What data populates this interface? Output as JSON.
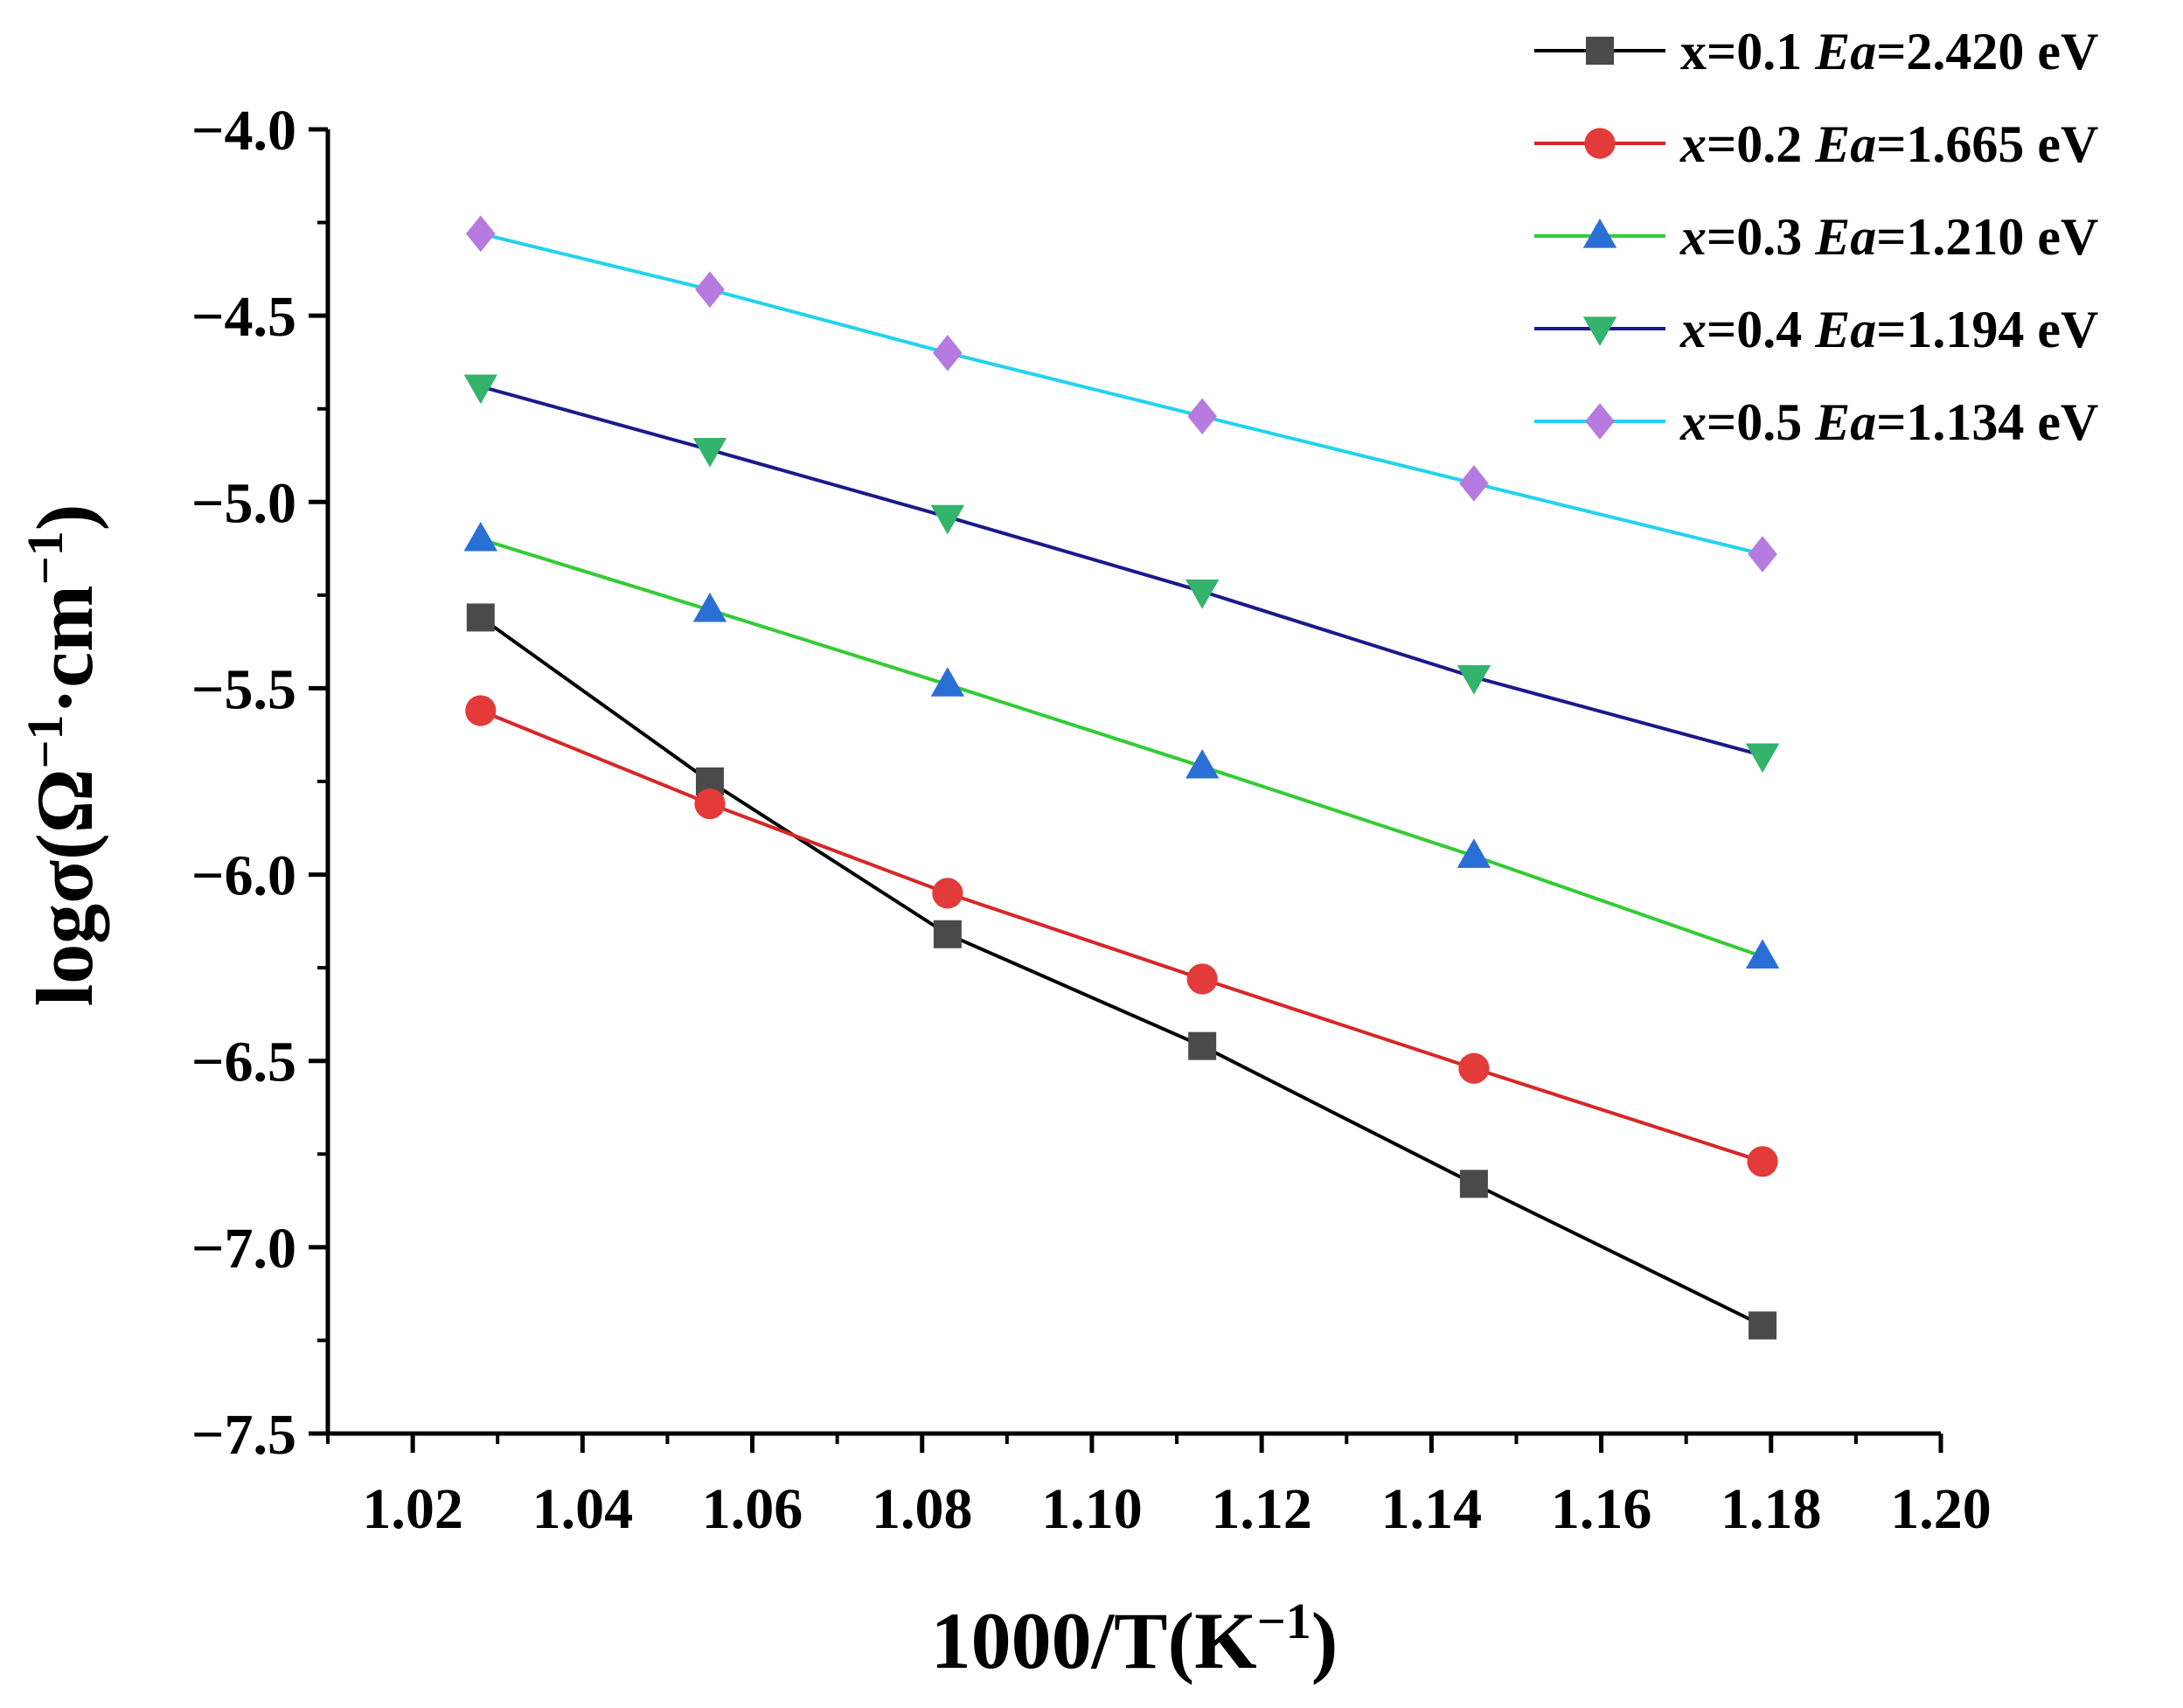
{
  "chart_data": {
    "type": "line",
    "title": "",
    "xlabel": "1000/T(K",
    "xlabel_sup": "−1",
    "xlabel_end": ")",
    "ylabel": "logσ(Ω",
    "ylabel_sup1": "−1",
    "ylabel_mid": "·cm",
    "ylabel_sup2": "−1",
    "ylabel_end": ")",
    "xlim": [
      1.01,
      1.2
    ],
    "ylim": [
      -7.5,
      -4.0
    ],
    "xticks": [
      1.02,
      1.04,
      1.06,
      1.08,
      1.1,
      1.12,
      1.14,
      1.16,
      1.18,
      1.2
    ],
    "xtick_labels": [
      "1.02",
      "1.04",
      "1.06",
      "1.08",
      "1.10",
      "1.12",
      "1.14",
      "1.16",
      "1.18",
      "1.20"
    ],
    "yticks": [
      -4.0,
      -4.5,
      -5.0,
      -5.5,
      -6.0,
      -6.5,
      -7.0,
      -7.5
    ],
    "ytick_labels": [
      "−4.0",
      "−4.5",
      "−5.0",
      "−5.5",
      "−6.0",
      "−6.5",
      "−7.0",
      "−7.5"
    ],
    "x": [
      1.028,
      1.055,
      1.083,
      1.113,
      1.145,
      1.179
    ],
    "series": [
      {
        "name": "x=0.1",
        "ea_label": "Ea",
        "ea_value": "=2.420 eV",
        "x_italic": false,
        "color": "#000000",
        "marker_color": "#4a4a4a",
        "marker": "square",
        "values": [
          -5.31,
          -5.75,
          -6.16,
          -6.46,
          -6.83,
          -7.21
        ]
      },
      {
        "name": "x=0.2",
        "ea_label": "Ea",
        "ea_value": "=1.665 eV",
        "x_italic": true,
        "color": "#d62728",
        "marker_color": "#e33a3a",
        "marker": "circle",
        "values": [
          -5.56,
          -5.81,
          -6.05,
          -6.28,
          -6.52,
          -6.77
        ]
      },
      {
        "name": "x=0.3",
        "ea_label": "Ea",
        "ea_value": "=1.210 eV",
        "x_italic": true,
        "color": "#33cc33",
        "marker_color": "#2a6fd6",
        "marker": "triangle-up",
        "values": [
          -5.1,
          -5.29,
          -5.49,
          -5.71,
          -5.95,
          -6.22
        ]
      },
      {
        "name": "x=0.4",
        "ea_label": "Ea",
        "ea_value": "=1.194 eV",
        "x_italic": true,
        "color": "#1a1a8c",
        "marker_color": "#33b36b",
        "marker": "triangle-down",
        "values": [
          -4.69,
          -4.86,
          -5.04,
          -5.24,
          -5.47,
          -5.68
        ]
      },
      {
        "name": "x=0.5",
        "ea_label": "Ea",
        "ea_value": "=1.134 eV",
        "x_italic": true,
        "color": "#22d3ee",
        "marker_color": "#b57be0",
        "marker": "diamond",
        "values": [
          -4.28,
          -4.43,
          -4.6,
          -4.77,
          -4.95,
          -5.14
        ]
      }
    ],
    "legend_position": "top-right",
    "grid": false
  }
}
